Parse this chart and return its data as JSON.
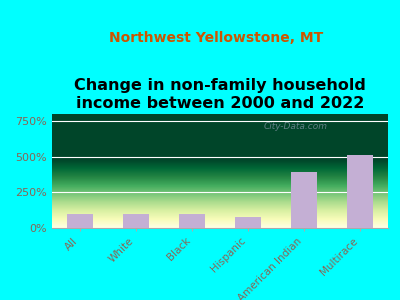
{
  "title": "Change in non-family household\nincome between 2000 and 2022",
  "subtitle": "Northwest Yellowstone, MT",
  "categories": [
    "All",
    "White",
    "Black",
    "Hispanic",
    "American Indian",
    "Multirace"
  ],
  "values": [
    100,
    100,
    95,
    80,
    390,
    510
  ],
  "bar_color": "#c4afd4",
  "yticks": [
    0,
    250,
    500,
    750
  ],
  "yticklabels": [
    "0%",
    "250%",
    "500%",
    "750%"
  ],
  "ylim": [
    0,
    800
  ],
  "bg_color": "#00ffff",
  "title_fontsize": 11.5,
  "subtitle_fontsize": 10,
  "subtitle_color": "#cc5500",
  "ytick_color": "#886655",
  "xtick_color": "#886655",
  "watermark": "City-Data.com"
}
